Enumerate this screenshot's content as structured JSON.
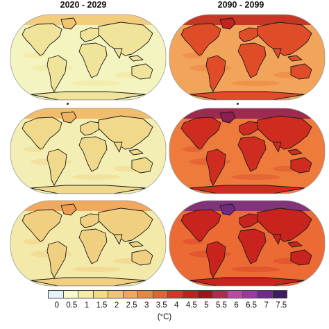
{
  "columns": [
    {
      "title": "2020 - 2029"
    },
    {
      "title": "2090 - 2099"
    }
  ],
  "maps": [
    {
      "row": 0,
      "col": 0,
      "ocean": "#f3f4bf",
      "land": "#f0e49a",
      "arctic": "#f1c670",
      "tint": "#f4e8a4"
    },
    {
      "row": 0,
      "col": 1,
      "ocean": "#f2a45a",
      "land": "#e04b28",
      "arctic": "#c0241c",
      "tint": "#ef8a45"
    },
    {
      "row": 1,
      "col": 0,
      "ocean": "#f3efb4",
      "land": "#f0d98a",
      "arctic": "#f0b460",
      "tint": "#f2dc94"
    },
    {
      "row": 1,
      "col": 1,
      "ocean": "#ee7a3c",
      "land": "#cf2c20",
      "arctic": "#8e1d52",
      "tint": "#e35d30"
    },
    {
      "row": 2,
      "col": 0,
      "ocean": "#f3eaaa",
      "land": "#f0d080",
      "arctic": "#ee9e52",
      "tint": "#f2d48a"
    },
    {
      "row": 2,
      "col": 1,
      "ocean": "#ec6a34",
      "land": "#c8231c",
      "arctic": "#6f2a86",
      "tint": "#df4e2c"
    }
  ],
  "colorbar": {
    "colors": [
      "#e6f3fb",
      "#f7f8cf",
      "#f4eda3",
      "#f3dc84",
      "#f1c56b",
      "#eea75b",
      "#ea8546",
      "#e56034",
      "#d7372a",
      "#c01f1e",
      "#9e141a",
      "#b02a4e",
      "#b84aa0",
      "#9a38a4",
      "#6e2a8c",
      "#3f1c60"
    ],
    "tick_labels": [
      "0",
      "0.5",
      "1",
      "1.5",
      "2",
      "2.5",
      "3",
      "3.5",
      "4",
      "4.5",
      "5",
      "5.5",
      "6",
      "6.5",
      "7",
      "7.5"
    ],
    "unit": "(°C)"
  }
}
